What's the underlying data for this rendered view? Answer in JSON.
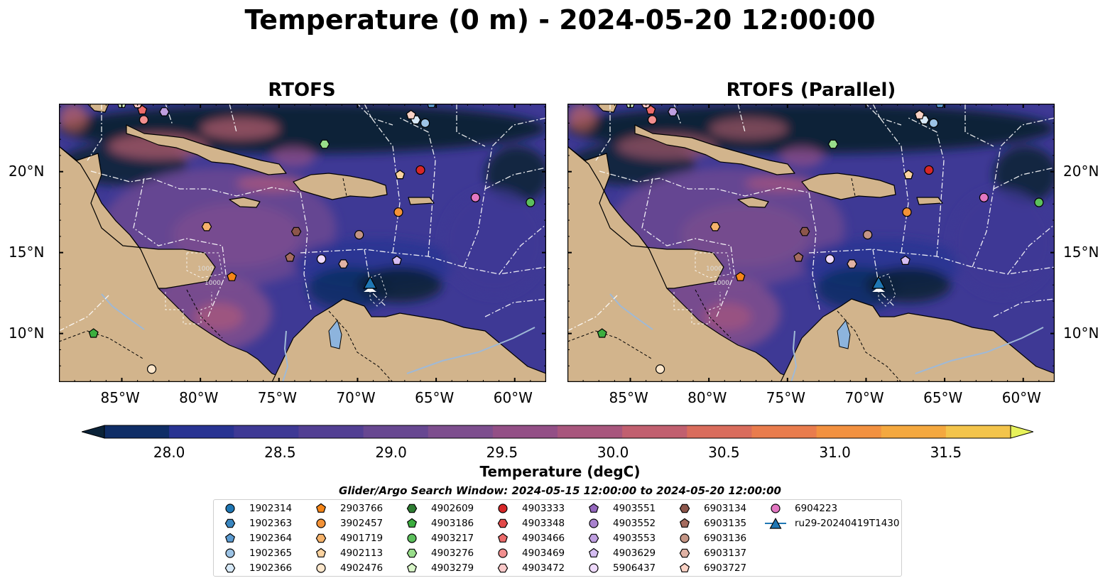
{
  "title": "Temperature (0 m) - 2024-05-20 12:00:00",
  "panels": [
    {
      "title": "RTOFS",
      "variant": "a"
    },
    {
      "title": "RTOFS (Parallel)",
      "variant": "b"
    }
  ],
  "map": {
    "lon_range": [
      -89.0,
      -58.0
    ],
    "lat_range": [
      7.0,
      24.2
    ],
    "lon_ticks": [
      {
        "lon": -85,
        "label": "85°W"
      },
      {
        "lon": -80,
        "label": "80°W"
      },
      {
        "lon": -75,
        "label": "75°W"
      },
      {
        "lon": -70,
        "label": "70°W"
      },
      {
        "lon": -65,
        "label": "65°W"
      },
      {
        "lon": -60,
        "label": "60°W"
      }
    ],
    "lat_ticks": [
      {
        "lat": 20,
        "label": "20°N"
      },
      {
        "lat": 15,
        "label": "15°N"
      },
      {
        "lat": 10,
        "label": "10°N"
      }
    ],
    "land_color": "#d2b48c",
    "lake_color": "#8db4dd",
    "contour_labels": [
      "1000",
      "1000"
    ]
  },
  "colorbar": {
    "label": "Temperature (degC)",
    "min": 28.0,
    "max": 31.5,
    "step": 0.25,
    "extend": "both",
    "ticks": [
      "28.0",
      "28.5",
      "29.0",
      "29.5",
      "30.0",
      "30.5",
      "31.0",
      "31.5"
    ],
    "colors": [
      "#0a2238",
      "#0f2d66",
      "#283392",
      "#3e3995",
      "#523f93",
      "#674791",
      "#7d4e8e",
      "#934f86",
      "#a8567d",
      "#c15f6f",
      "#d96c5c",
      "#e97c4d",
      "#f29140",
      "#f4a83f",
      "#f3c44b",
      "#e7f25b"
    ]
  },
  "legend": {
    "header": "Glider/Argo Search Window: 2024-05-15 12:00:00 to 2024-05-20 12:00:00",
    "items": [
      {
        "label": "1902314",
        "marker": "circle",
        "color": "#1f77b4",
        "lon": null,
        "lat": null
      },
      {
        "label": "1902363",
        "marker": "hexagon",
        "color": "#3a86c0",
        "lon": null,
        "lat": null
      },
      {
        "label": "1902364",
        "marker": "pentagon",
        "color": "#5c9bd1",
        "lon": -65.3,
        "lat": 24.2
      },
      {
        "label": "1902365",
        "marker": "circle",
        "color": "#9cc3e5",
        "lon": -65.7,
        "lat": 23.0
      },
      {
        "label": "1902366",
        "marker": "hexagon",
        "color": "#d6e8f7",
        "lon": -66.3,
        "lat": 23.2
      },
      {
        "label": "2903766",
        "marker": "pentagon",
        "color": "#f58518",
        "lon": -78.0,
        "lat": 13.5
      },
      {
        "label": "3902457",
        "marker": "circle",
        "color": "#f39237",
        "lon": -67.4,
        "lat": 17.5
      },
      {
        "label": "4901719",
        "marker": "hexagon",
        "color": "#f5b26b",
        "lon": -79.6,
        "lat": 16.6
      },
      {
        "label": "4902113",
        "marker": "pentagon",
        "color": "#fbd3a0",
        "lon": -67.3,
        "lat": 19.8
      },
      {
        "label": "4902476",
        "marker": "circle",
        "color": "#fde7cc",
        "lon": -83.1,
        "lat": 7.8
      },
      {
        "label": "4902609",
        "marker": "hexagon",
        "color": "#2e7d32",
        "lon": null,
        "lat": null
      },
      {
        "label": "4903186",
        "marker": "pentagon",
        "color": "#3cae3f",
        "lon": -86.8,
        "lat": 10.0
      },
      {
        "label": "4903217",
        "marker": "circle",
        "color": "#5cc05c",
        "lon": -59.0,
        "lat": 18.1
      },
      {
        "label": "4903276",
        "marker": "hexagon",
        "color": "#98dd8a",
        "lon": -72.1,
        "lat": 21.7
      },
      {
        "label": "4903279",
        "marker": "pentagon",
        "color": "#d8f5c8",
        "lon": -85.0,
        "lat": 24.2
      },
      {
        "label": "4903333",
        "marker": "circle",
        "color": "#d62728",
        "lon": -66.0,
        "lat": 20.1
      },
      {
        "label": "4903348",
        "marker": "hexagon",
        "color": "#e24a4a",
        "lon": null,
        "lat": null
      },
      {
        "label": "4903466",
        "marker": "pentagon",
        "color": "#ec6b6b",
        "lon": -83.7,
        "lat": 23.8
      },
      {
        "label": "4903469",
        "marker": "circle",
        "color": "#f28f8f",
        "lon": -83.6,
        "lat": 23.2
      },
      {
        "label": "4903472",
        "marker": "hexagon",
        "color": "#fbc9c9",
        "lon": -84.0,
        "lat": 24.2
      },
      {
        "label": "4903551",
        "marker": "pentagon",
        "color": "#9467bd",
        "lon": null,
        "lat": null
      },
      {
        "label": "4903552",
        "marker": "circle",
        "color": "#a982cf",
        "lon": null,
        "lat": null
      },
      {
        "label": "4903553",
        "marker": "hexagon",
        "color": "#bf9fe0",
        "lon": -82.3,
        "lat": 23.7
      },
      {
        "label": "4903629",
        "marker": "pentagon",
        "color": "#d5bdf2",
        "lon": -67.5,
        "lat": 14.5
      },
      {
        "label": "5906437",
        "marker": "circle",
        "color": "#eed9fb",
        "lon": -72.3,
        "lat": 14.6
      },
      {
        "label": "6903134",
        "marker": "hexagon",
        "color": "#8c564b",
        "lon": -73.9,
        "lat": 16.3
      },
      {
        "label": "6903135",
        "marker": "pentagon",
        "color": "#a56c5f",
        "lon": -74.3,
        "lat": 14.7
      },
      {
        "label": "6903136",
        "marker": "circle",
        "color": "#c49585",
        "lon": -69.9,
        "lat": 16.1
      },
      {
        "label": "6903137",
        "marker": "hexagon",
        "color": "#e0b2a4",
        "lon": -70.9,
        "lat": 14.3
      },
      {
        "label": "6903727",
        "marker": "pentagon",
        "color": "#fad2c5",
        "lon": -66.6,
        "lat": 23.5
      },
      {
        "label": "6904223",
        "marker": "circle",
        "color": "#e377c2",
        "lon": -62.5,
        "lat": 18.4
      },
      {
        "label": "ru29-20240419T1430",
        "marker": "triangle-line",
        "color": "#1f77b4",
        "lon": -69.2,
        "lat": 13.1
      }
    ]
  }
}
